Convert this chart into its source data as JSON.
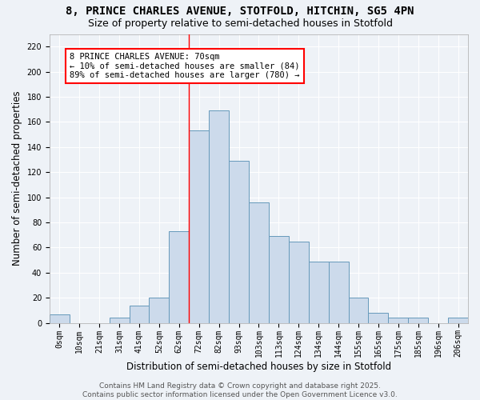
{
  "title_line1": "8, PRINCE CHARLES AVENUE, STOTFOLD, HITCHIN, SG5 4PN",
  "title_line2": "Size of property relative to semi-detached houses in Stotfold",
  "xlabel": "Distribution of semi-detached houses by size in Stotfold",
  "ylabel": "Number of semi-detached properties",
  "bar_labels": [
    "0sqm",
    "10sqm",
    "21sqm",
    "31sqm",
    "41sqm",
    "52sqm",
    "62sqm",
    "72sqm",
    "82sqm",
    "93sqm",
    "103sqm",
    "113sqm",
    "124sqm",
    "134sqm",
    "144sqm",
    "155sqm",
    "165sqm",
    "175sqm",
    "185sqm",
    "196sqm",
    "206sqm"
  ],
  "bar_values": [
    7,
    0,
    0,
    4,
    14,
    20,
    73,
    153,
    169,
    129,
    96,
    69,
    65,
    49,
    49,
    20,
    8,
    4,
    4,
    0,
    4
  ],
  "bar_color": "#ccdaeb",
  "bar_edge_color": "#6699bb",
  "highlight_bar_index": 6,
  "annotation_text": "8 PRINCE CHARLES AVENUE: 70sqm\n← 10% of semi-detached houses are smaller (84)\n89% of semi-detached houses are larger (780) →",
  "annotation_box_color": "white",
  "annotation_box_edge_color": "red",
  "ylim": [
    0,
    230
  ],
  "yticks": [
    0,
    20,
    40,
    60,
    80,
    100,
    120,
    140,
    160,
    180,
    200,
    220
  ],
  "footer_text": "Contains HM Land Registry data © Crown copyright and database right 2025.\nContains public sector information licensed under the Open Government Licence v3.0.",
  "background_color": "#eef2f7",
  "plot_background_color": "#eef2f7",
  "title_fontsize": 10,
  "subtitle_fontsize": 9,
  "axis_label_fontsize": 8.5,
  "tick_fontsize": 7,
  "annotation_fontsize": 7.5,
  "footer_fontsize": 6.5,
  "grid_color": "#ffffff",
  "spine_color": "#aaaaaa"
}
